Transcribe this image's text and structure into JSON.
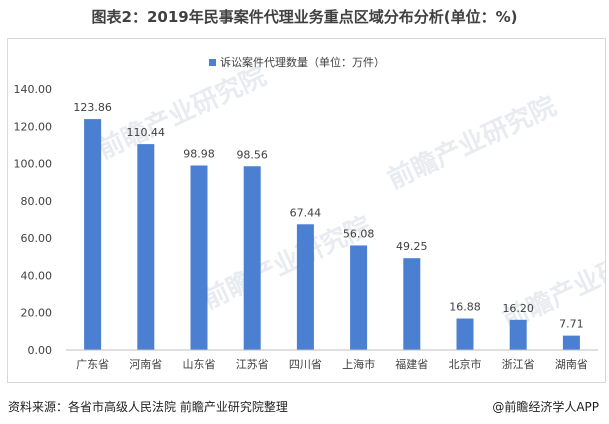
{
  "title": "图表2：2019年民事案件代理业务重点区域分布分析(单位：%)",
  "watermark": "前瞻产业研究院",
  "chart_data": {
    "type": "bar",
    "categories": [
      "广东省",
      "河南省",
      "山东省",
      "江苏省",
      "四川省",
      "上海市",
      "福建省",
      "北京市",
      "浙江省",
      "湖南省"
    ],
    "series": [
      {
        "name": "诉讼案件代理数量（单位：万件）",
        "values": [
          123.86,
          110.44,
          98.98,
          98.56,
          67.44,
          56.08,
          49.25,
          16.88,
          16.2,
          7.71
        ],
        "value_labels": [
          "123.86",
          "110.44",
          "98.98",
          "98.56",
          "67.44",
          "56.08",
          "49.25",
          "16.88",
          "16.20",
          "7.71"
        ]
      }
    ],
    "y_ticks": [
      "0.00",
      "20.00",
      "40.00",
      "60.00",
      "80.00",
      "100.00",
      "120.00",
      "140.00"
    ],
    "ylim": [
      0,
      140
    ],
    "grid": false,
    "legend_position": "top-center",
    "bar_color": "#4a7fd1"
  },
  "footer": {
    "source": "资料来源：各省市高级人民法院 前瞻产业研究院整理",
    "brand": "@前瞻经济学人APP"
  }
}
